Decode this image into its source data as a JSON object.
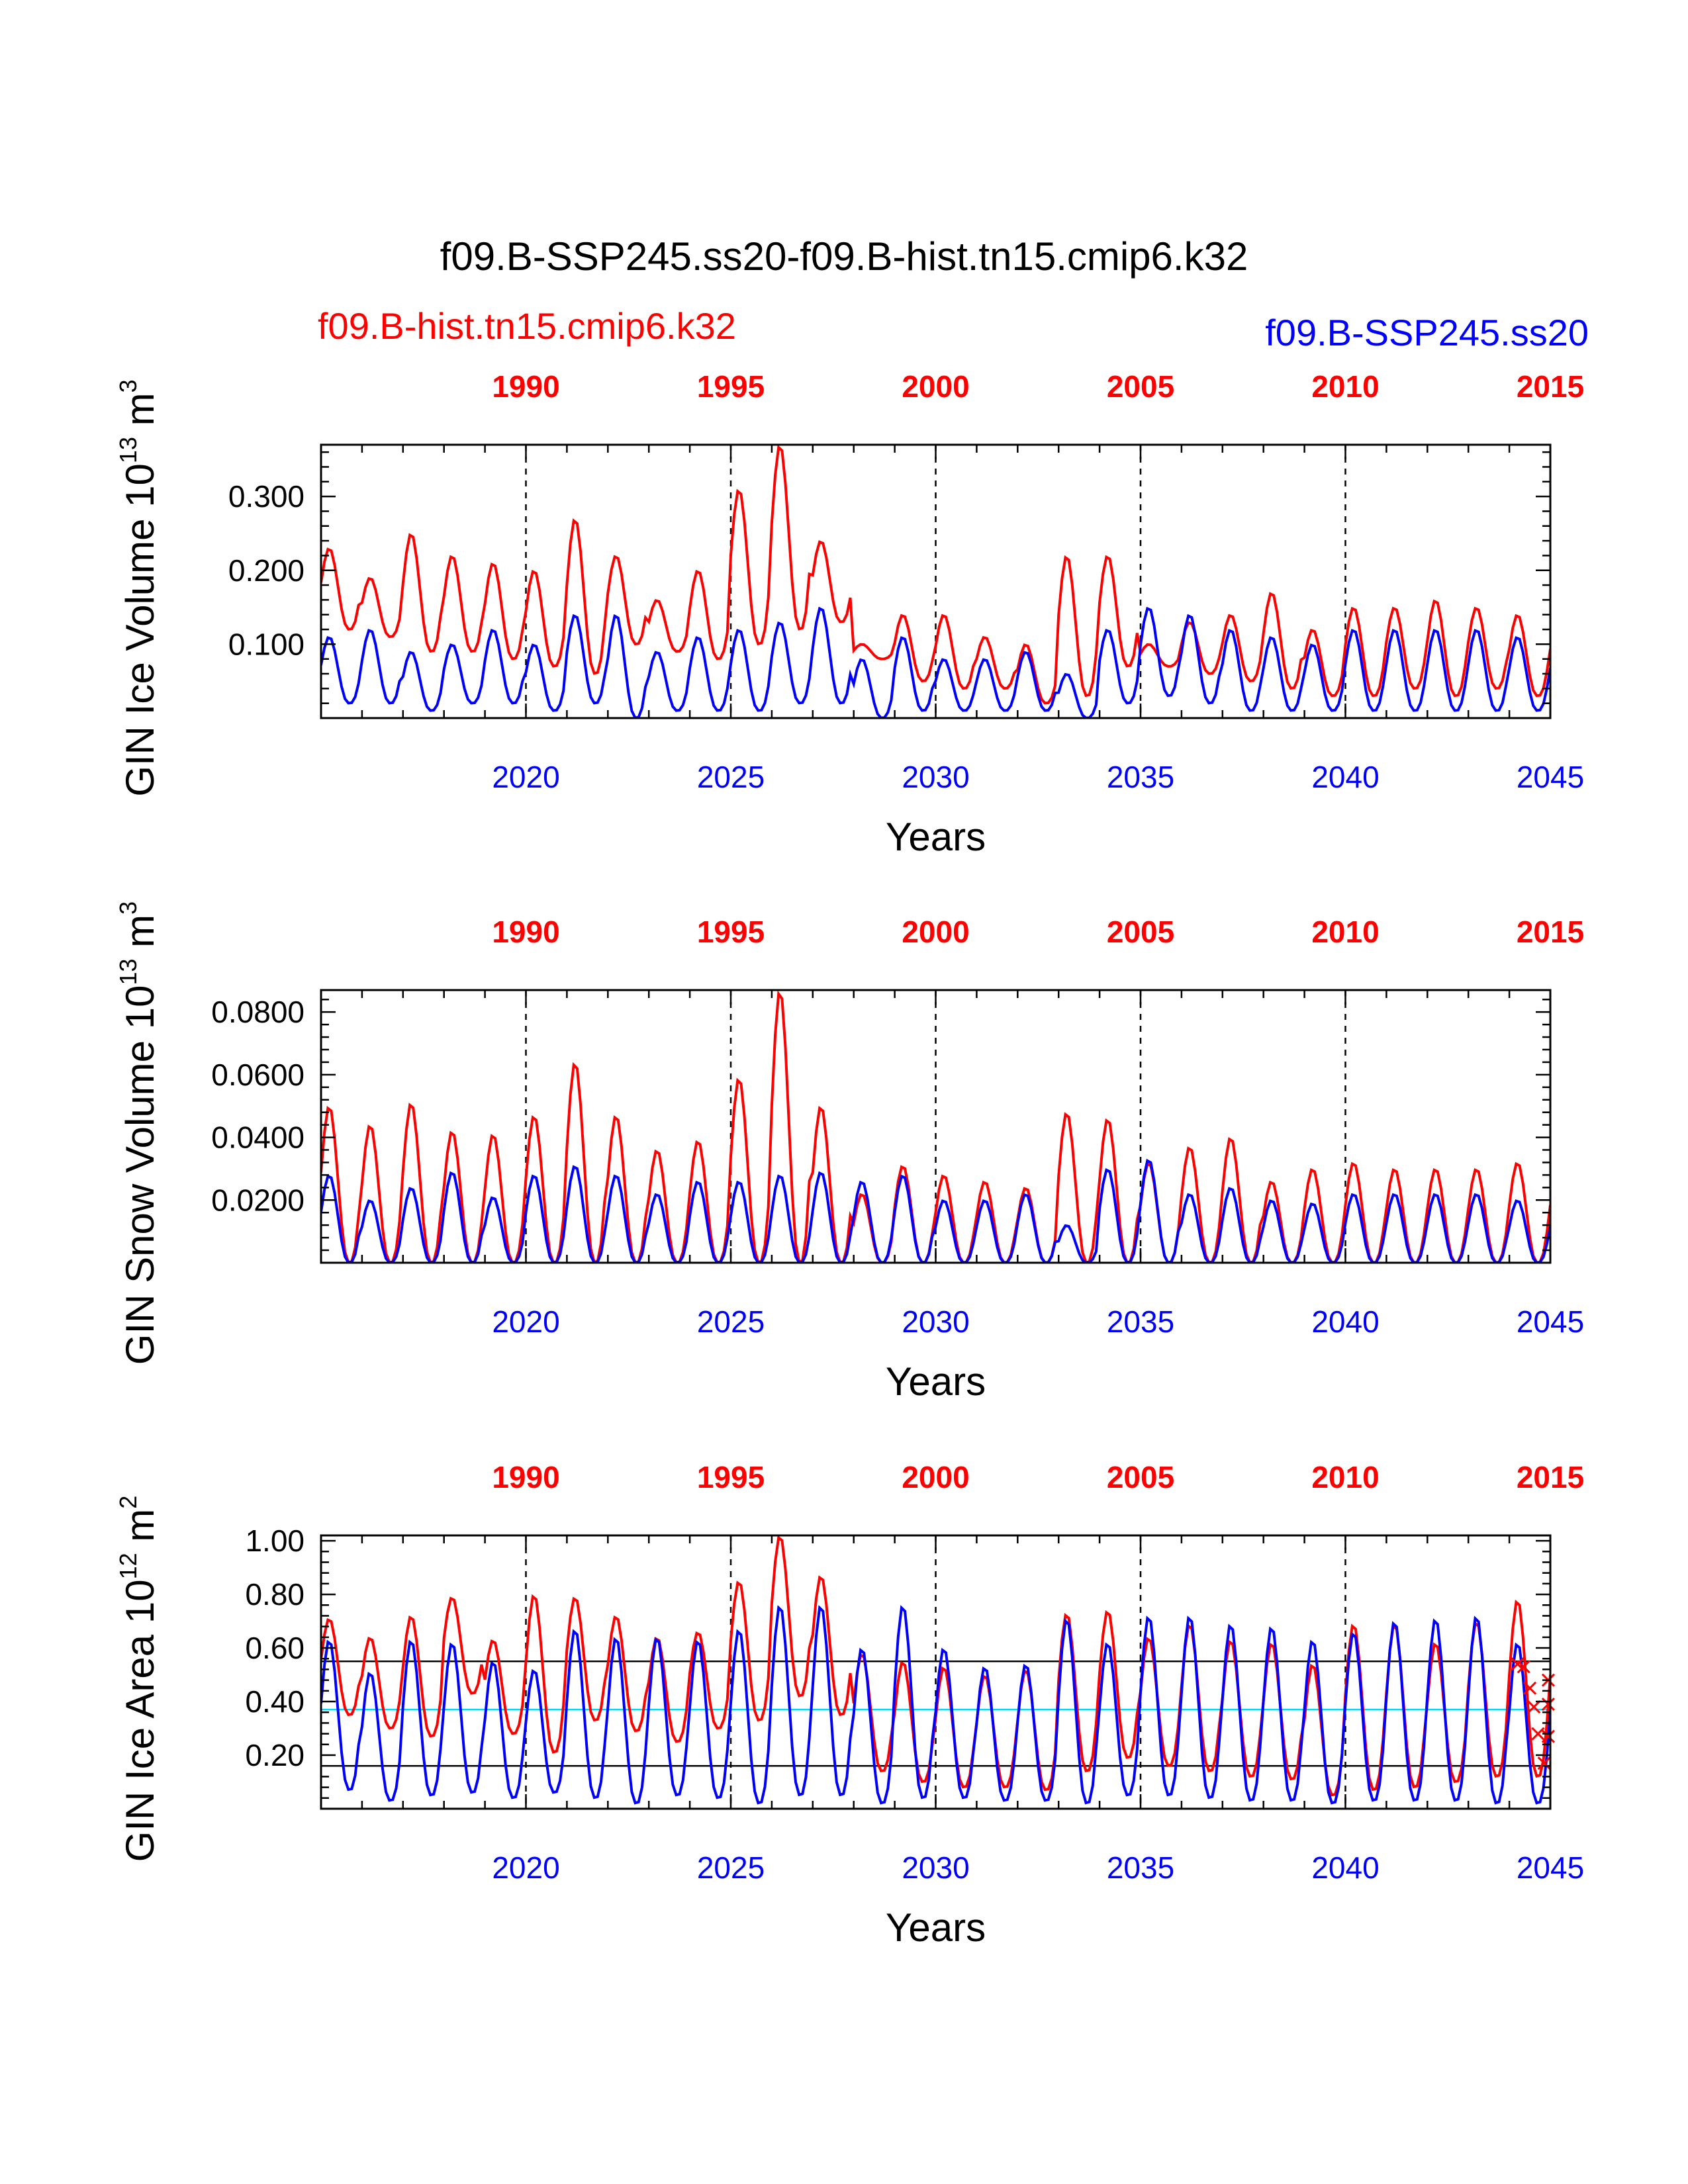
{
  "figure": {
    "title": "f09.B-SSP245.ss20-f09.B-hist.tn15.cmip6.k32",
    "case_left": {
      "label": "f09.B-hist.tn15.cmip6.k32",
      "color": "#ff0000"
    },
    "case_right": {
      "label": "f09.B-SSP245.ss20",
      "color": "#0000ff"
    }
  },
  "colors": {
    "hist": "#ff0000",
    "ssp": "#0000ff",
    "cyan_ref": "#00d8ff",
    "black_ref": "#000000"
  },
  "chart_data": [
    {
      "type": "line",
      "ylabel": {
        "main": "GIN Ice Volume 10",
        "sup1": "13",
        "unit": " m",
        "sup2": "3"
      },
      "xlabel": "Years",
      "xlim": [
        2015,
        2045
      ],
      "ylim": [
        0.0,
        0.37
      ],
      "yticks": [
        0.1,
        0.2,
        0.3
      ],
      "ytick_labels": [
        "0.100",
        "0.200",
        "0.300"
      ],
      "bottom_ticks": [
        "2020",
        "2025",
        "2030",
        "2035",
        "2040",
        "2045"
      ],
      "top_ticks": [
        "1990",
        "1995",
        "2000",
        "2005",
        "2010",
        "2015"
      ],
      "series": [
        {
          "key": "hist",
          "annual_max": [
            0.23,
            0.19,
            0.25,
            0.22,
            0.21,
            0.2,
            0.27,
            0.22,
            0.16,
            0.2,
            0.31,
            0.37,
            0.24,
            0.1,
            0.14,
            0.14,
            0.11,
            0.1,
            0.22,
            0.22,
            0.1,
            0.13,
            0.14,
            0.17,
            0.12,
            0.15,
            0.15,
            0.16,
            0.15,
            0.14
          ],
          "annual_min": [
            0.12,
            0.11,
            0.09,
            0.09,
            0.08,
            0.07,
            0.06,
            0.1,
            0.09,
            0.08,
            0.1,
            0.12,
            0.13,
            0.08,
            0.05,
            0.04,
            0.04,
            0.02,
            0.03,
            0.07,
            0.07,
            0.06,
            0.05,
            0.04,
            0.03,
            0.03,
            0.04,
            0.03,
            0.04,
            0.03
          ]
        },
        {
          "key": "ssp",
          "annual_max": [
            0.11,
            0.12,
            0.09,
            0.1,
            0.12,
            0.1,
            0.14,
            0.14,
            0.09,
            0.11,
            0.12,
            0.13,
            0.15,
            0.08,
            0.11,
            0.08,
            0.08,
            0.09,
            0.06,
            0.12,
            0.15,
            0.14,
            0.12,
            0.11,
            0.1,
            0.12,
            0.12,
            0.12,
            0.12,
            0.11
          ],
          "annual_min": [
            0.02,
            0.02,
            0.01,
            0.02,
            0.02,
            0.01,
            0.02,
            0.0,
            0.01,
            0.01,
            0.01,
            0.02,
            0.02,
            0.0,
            0.01,
            0.01,
            0.01,
            0.01,
            0.0,
            0.02,
            0.03,
            0.02,
            0.01,
            0.01,
            0.01,
            0.01,
            0.01,
            0.01,
            0.01,
            0.01
          ]
        }
      ],
      "ref_lines": []
    },
    {
      "type": "line",
      "ylabel": {
        "main": "GIN Snow Volume 10",
        "sup1": "13",
        "unit": " m",
        "sup2": "3"
      },
      "xlabel": "Years",
      "xlim": [
        2015,
        2045
      ],
      "ylim": [
        0.0,
        0.087
      ],
      "yticks": [
        0.02,
        0.04,
        0.06,
        0.08
      ],
      "ytick_labels": [
        "0.0200",
        "0.0400",
        "0.0600",
        "0.0800"
      ],
      "bottom_ticks": [
        "2020",
        "2025",
        "2030",
        "2035",
        "2040",
        "2045"
      ],
      "top_ticks": [
        "1990",
        "1995",
        "2000",
        "2005",
        "2010",
        "2015"
      ],
      "series": [
        {
          "key": "hist",
          "annual_max": [
            0.05,
            0.044,
            0.051,
            0.042,
            0.041,
            0.047,
            0.064,
            0.047,
            0.036,
            0.039,
            0.059,
            0.087,
            0.05,
            0.022,
            0.031,
            0.028,
            0.026,
            0.024,
            0.048,
            0.046,
            0.032,
            0.037,
            0.04,
            0.026,
            0.03,
            0.032,
            0.03,
            0.03,
            0.03,
            0.032
          ],
          "annual_min": [
            0.0,
            0.0,
            0.0,
            0.0,
            0.0,
            0.0,
            0.0,
            0.0,
            0.0,
            0.0,
            0.0,
            0.0,
            0.0,
            0.0,
            0.0,
            0.0,
            0.0,
            0.0,
            0.0,
            0.0,
            0.0,
            0.0,
            0.0,
            0.0,
            0.0,
            0.0,
            0.0,
            0.0,
            0.0,
            0.0
          ]
        },
        {
          "key": "ssp",
          "annual_max": [
            0.028,
            0.02,
            0.024,
            0.029,
            0.021,
            0.028,
            0.031,
            0.028,
            0.022,
            0.026,
            0.026,
            0.028,
            0.029,
            0.026,
            0.028,
            0.02,
            0.02,
            0.022,
            0.012,
            0.03,
            0.033,
            0.022,
            0.024,
            0.02,
            0.019,
            0.022,
            0.022,
            0.022,
            0.022,
            0.02
          ],
          "annual_min": [
            0.0,
            0.0,
            0.0,
            0.0,
            0.0,
            0.0,
            0.0,
            0.0,
            0.0,
            0.0,
            0.0,
            0.0,
            0.0,
            0.0,
            0.0,
            0.0,
            0.0,
            0.0,
            0.0,
            0.0,
            0.0,
            0.0,
            0.0,
            0.0,
            0.0,
            0.0,
            0.0,
            0.0,
            0.0,
            0.0
          ]
        }
      ],
      "ref_lines": []
    },
    {
      "type": "line",
      "ylabel": {
        "main": "GIN Ice Area 10",
        "sup1": "12",
        "unit": " m",
        "sup2": "2"
      },
      "xlabel": "Years",
      "xlim": [
        2015,
        2045
      ],
      "ylim": [
        0.0,
        1.02
      ],
      "yticks": [
        0.2,
        0.4,
        0.6,
        0.8,
        1.0
      ],
      "ytick_labels": [
        "0.20",
        "0.40",
        "0.60",
        "0.80",
        "1.00"
      ],
      "bottom_ticks": [
        "2020",
        "2025",
        "2030",
        "2035",
        "2040",
        "2045"
      ],
      "top_ticks": [
        "1990",
        "1995",
        "2000",
        "2005",
        "2010",
        "2015"
      ],
      "series": [
        {
          "key": "hist",
          "annual_max": [
            0.71,
            0.64,
            0.72,
            0.79,
            0.63,
            0.8,
            0.79,
            0.72,
            0.64,
            0.66,
            0.85,
            1.02,
            0.87,
            0.58,
            0.55,
            0.53,
            0.5,
            0.52,
            0.73,
            0.74,
            0.64,
            0.69,
            0.63,
            0.62,
            0.54,
            0.69,
            0.69,
            0.62,
            0.7,
            0.78
          ],
          "annual_min": [
            0.35,
            0.3,
            0.27,
            0.43,
            0.28,
            0.21,
            0.33,
            0.29,
            0.25,
            0.3,
            0.33,
            0.42,
            0.35,
            0.14,
            0.1,
            0.08,
            0.08,
            0.07,
            0.14,
            0.19,
            0.16,
            0.14,
            0.12,
            0.11,
            0.05,
            0.07,
            0.08,
            0.1,
            0.12,
            0.12
          ]
        },
        {
          "key": "ssp",
          "annual_max": [
            0.63,
            0.51,
            0.63,
            0.62,
            0.55,
            0.52,
            0.67,
            0.64,
            0.64,
            0.63,
            0.67,
            0.76,
            0.76,
            0.6,
            0.76,
            0.6,
            0.53,
            0.54,
            0.71,
            0.62,
            0.72,
            0.72,
            0.69,
            0.68,
            0.63,
            0.66,
            0.7,
            0.71,
            0.72,
            0.62
          ],
          "annual_min": [
            0.07,
            0.03,
            0.05,
            0.06,
            0.04,
            0.06,
            0.04,
            0.02,
            0.05,
            0.04,
            0.02,
            0.05,
            0.05,
            0.02,
            0.04,
            0.04,
            0.03,
            0.03,
            0.02,
            0.05,
            0.05,
            0.04,
            0.03,
            0.03,
            0.02,
            0.03,
            0.03,
            0.03,
            0.02,
            0.02
          ]
        }
      ],
      "ref_lines": [
        {
          "y": 0.55,
          "color": "#000000"
        },
        {
          "y": 0.37,
          "color": "#00d8ff"
        },
        {
          "y": 0.16,
          "color": "#000000"
        }
      ],
      "markers": {
        "symbol": "x",
        "color": "#ff0000",
        "x": [
          2044.2,
          2044.35,
          2044.5,
          2044.6,
          2044.7,
          2044.85,
          2044.95,
          2044.95,
          2044.95
        ],
        "y": [
          0.54,
          0.53,
          0.45,
          0.38,
          0.28,
          0.17,
          0.39,
          0.48,
          0.27
        ]
      }
    }
  ]
}
